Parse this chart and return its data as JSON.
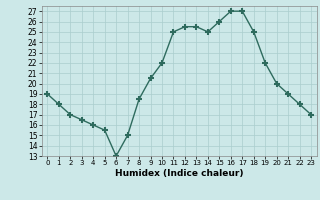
{
  "x": [
    0,
    1,
    2,
    3,
    4,
    5,
    6,
    7,
    8,
    9,
    10,
    11,
    12,
    13,
    14,
    15,
    16,
    17,
    18,
    19,
    20,
    21,
    22,
    23
  ],
  "y": [
    19,
    18,
    17,
    16.5,
    16,
    15.5,
    13,
    15,
    18.5,
    20.5,
    22,
    25,
    25.5,
    25.5,
    25,
    26,
    27,
    27,
    25,
    22,
    20,
    19,
    18,
    17
  ],
  "line_color": "#2e6b5e",
  "marker": "+",
  "bg_color": "#cce8e8",
  "grid_color": "#aacece",
  "xlabel": "Humidex (Indice chaleur)",
  "yticks": [
    13,
    14,
    15,
    16,
    17,
    18,
    19,
    20,
    21,
    22,
    23,
    24,
    25,
    26,
    27
  ],
  "xticks": [
    0,
    1,
    2,
    3,
    4,
    5,
    6,
    7,
    8,
    9,
    10,
    11,
    12,
    13,
    14,
    15,
    16,
    17,
    18,
    19,
    20,
    21,
    22,
    23
  ],
  "xlim": [
    -0.5,
    23.5
  ],
  "ylim": [
    13,
    27.5
  ]
}
